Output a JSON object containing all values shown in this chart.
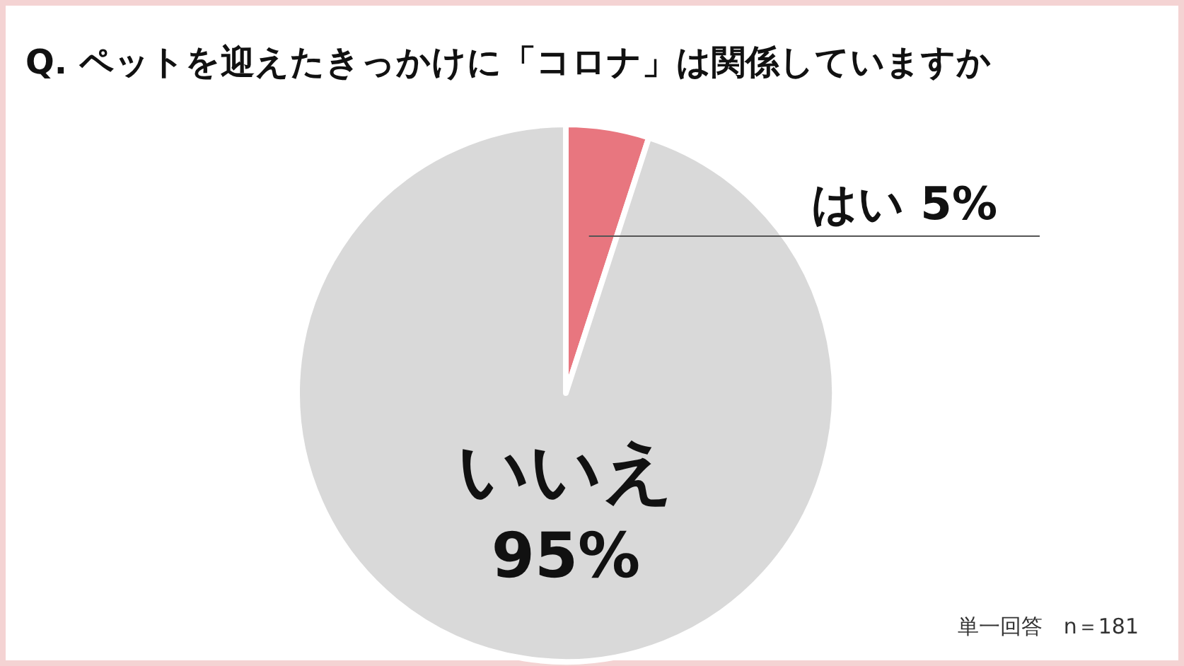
{
  "chart_data": {
    "type": "pie",
    "title": "Q. ペットを迎えたきっかけに「コロナ」は関係していますか",
    "categories": [
      "はい",
      "いいえ"
    ],
    "values": [
      5,
      95
    ],
    "value_labels": [
      "5%",
      "95%"
    ],
    "colors": [
      "#e8767f",
      "#d9d9d9"
    ],
    "annotations": [
      "単一回答　n＝181"
    ]
  }
}
